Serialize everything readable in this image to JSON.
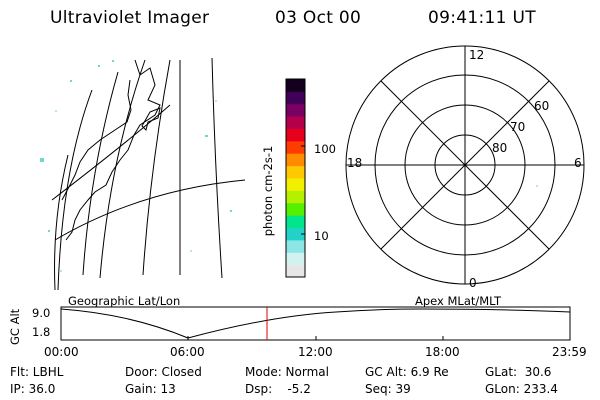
{
  "header": {
    "instrument": "Ultraviolet Imager",
    "date": "03 Oct 00",
    "time": "09:41:11 UT"
  },
  "colorbar": {
    "unit_label": "photon cm-2s-1",
    "tick_labels": [
      "100",
      "10"
    ],
    "colors": [
      "#e6e6e6",
      "#d2f2f2",
      "#8ce6e6",
      "#22d2c8",
      "#00e68c",
      "#55f000",
      "#b4f000",
      "#f0f000",
      "#ffc800",
      "#ff8c00",
      "#ff3c00",
      "#e6001e",
      "#b4004b",
      "#7a0064",
      "#40005a",
      "#14001e"
    ]
  },
  "polar_plot": {
    "mlt_labels": {
      "top": "12",
      "bottom": "0",
      "left": "18",
      "right": "6"
    },
    "lat_labels": [
      "60",
      "70",
      "80"
    ]
  },
  "left_panel_caption": "Geographic Lat/Lon",
  "right_panel_caption": "Apex MLat/MLT",
  "orbit_chart": {
    "ylabel": "GC Alt",
    "y_ticks": [
      "9.0",
      "1.8"
    ],
    "x_ticks": [
      "00:00",
      "06:00",
      "12:00",
      "18:00",
      "23:59"
    ],
    "current_time_marker": "09:41"
  },
  "status": {
    "filter": "Flt: LBHL",
    "ip": "IP: 36.0",
    "door": "Door: Closed",
    "gain": "Gain: 13",
    "mode": "Mode: Normal",
    "dsp": "Dsp:    -5.2",
    "gc_alt": "GC Alt: 6.9 Re",
    "seq": "Seq: 39",
    "glat": "GLat:  30.6",
    "glon": "GLon: 233.4"
  }
}
